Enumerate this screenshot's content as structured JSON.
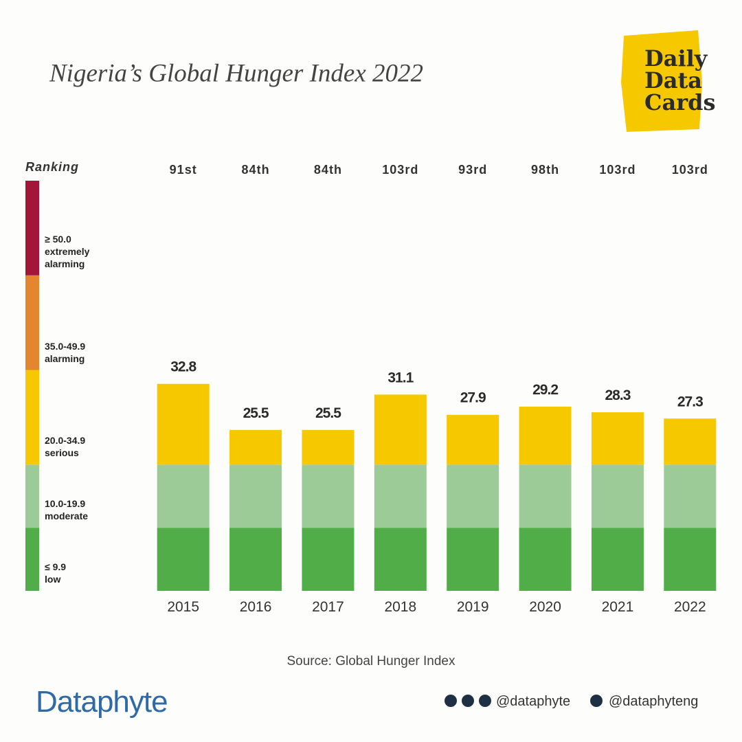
{
  "chart_data": {
    "type": "bar",
    "title": "Nigeria’s Global Hunger Index 2022",
    "ranking_title": "Ranking",
    "categories": [
      "2015",
      "2016",
      "2017",
      "2018",
      "2019",
      "2020",
      "2021",
      "2022"
    ],
    "values": [
      32.8,
      25.5,
      25.5,
      31.1,
      27.9,
      29.2,
      28.3,
      27.3
    ],
    "rankings": [
      "91st",
      "84th",
      "84th",
      "103rd",
      "93rd",
      "98th",
      "103rd",
      "103rd"
    ],
    "ylim": [
      0,
      65
    ],
    "bands": [
      {
        "range": "≤ 9.9",
        "label": "low",
        "min": 0,
        "color": "#50ad48"
      },
      {
        "range": "10.0-19.9",
        "label": "moderate",
        "min": 10,
        "color": "#9dcb98"
      },
      {
        "range": "20.0-34.9",
        "label": "serious",
        "min": 20,
        "color": "#f6c800"
      },
      {
        "range": "35.0-49.9",
        "label": "alarming",
        "min": 35,
        "color": "#e5852f"
      },
      {
        "range": "≥ 50.0",
        "label": "extremely alarming",
        "min": 50,
        "color": "#a3163a"
      }
    ],
    "source": "Source: Global Hunger Index"
  },
  "brand": {
    "badge": [
      "Daily",
      "Data",
      "Cards"
    ],
    "logo": "Dataphyte",
    "handles": [
      "@dataphyte",
      "@dataphyteng"
    ]
  }
}
